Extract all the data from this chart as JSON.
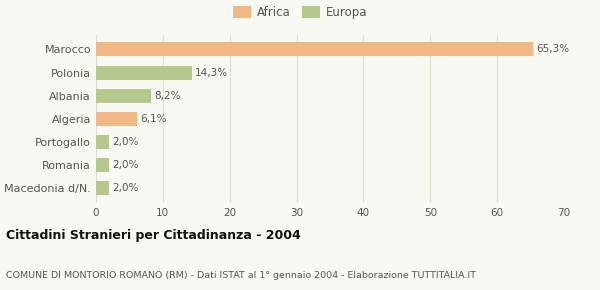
{
  "categories": [
    "Marocco",
    "Polonia",
    "Albania",
    "Algeria",
    "Portogallo",
    "Romania",
    "Macedonia d/N."
  ],
  "values": [
    65.3,
    14.3,
    8.2,
    6.1,
    2.0,
    2.0,
    2.0
  ],
  "labels": [
    "65,3%",
    "14,3%",
    "8,2%",
    "6,1%",
    "2,0%",
    "2,0%",
    "2,0%"
  ],
  "colors": [
    "#f0b985",
    "#b5c98e",
    "#b5c98e",
    "#f0b985",
    "#b5c98e",
    "#b5c98e",
    "#b5c98e"
  ],
  "legend_items": [
    {
      "label": "Africa",
      "color": "#f0b985"
    },
    {
      "label": "Europa",
      "color": "#b5c98e"
    }
  ],
  "xlim": [
    0,
    70
  ],
  "xticks": [
    0,
    10,
    20,
    30,
    40,
    50,
    60,
    70
  ],
  "title": "Cittadini Stranieri per Cittadinanza - 2004",
  "subtitle": "COMUNE DI MONTORIO ROMANO (RM) - Dati ISTAT al 1° gennaio 2004 - Elaborazione TUTTITALIA.IT",
  "bg_color": "#f9f9f4",
  "grid_color": "#e0e0d0"
}
